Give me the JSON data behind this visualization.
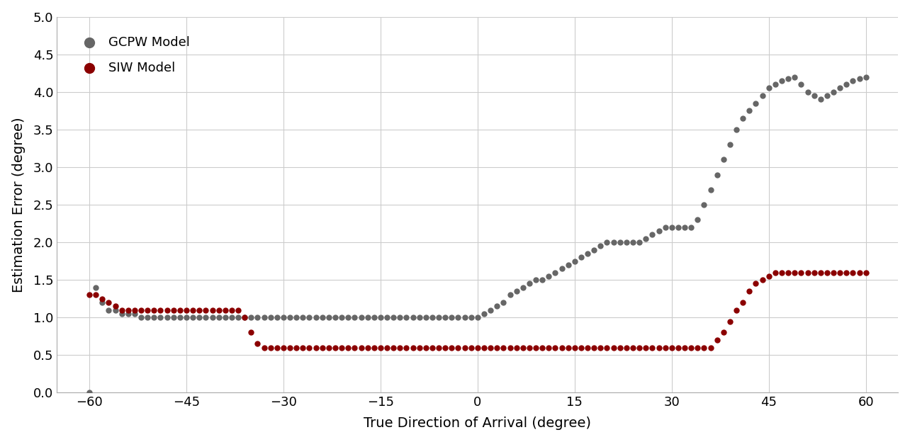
{
  "xlabel": "True Direction of Arrival (degree)",
  "ylabel": "Estimation Error (degree)",
  "xlim": [
    -65,
    65
  ],
  "ylim": [
    0.0,
    5.0
  ],
  "xticks": [
    -60,
    -45,
    -30,
    -15,
    0,
    15,
    30,
    45,
    60
  ],
  "yticks": [
    0.0,
    0.5,
    1.0,
    1.5,
    2.0,
    2.5,
    3.0,
    3.5,
    4.0,
    4.5,
    5.0
  ],
  "gcpw_color": "#666666",
  "siw_color": "#8b0000",
  "background_color": "#ffffff",
  "grid_color": "#cccccc",
  "legend_gcpw": "GCPW Model",
  "legend_siw": "SIW Model",
  "gcpw_x": [
    -60,
    -59,
    -58,
    -57,
    -56,
    -55,
    -54,
    -53,
    -52,
    -51,
    -50,
    -49,
    -48,
    -47,
    -46,
    -45,
    -44,
    -43,
    -42,
    -41,
    -40,
    -39,
    -38,
    -37,
    -36,
    -35,
    -34,
    -33,
    -32,
    -31,
    -30,
    -29,
    -28,
    -27,
    -26,
    -25,
    -24,
    -23,
    -22,
    -21,
    -20,
    -19,
    -18,
    -17,
    -16,
    -15,
    -14,
    -13,
    -12,
    -11,
    -10,
    -9,
    -8,
    -7,
    -6,
    -5,
    -4,
    -3,
    -2,
    -1,
    0,
    1,
    2,
    3,
    4,
    5,
    6,
    7,
    8,
    9,
    10,
    11,
    12,
    13,
    14,
    15,
    16,
    17,
    18,
    19,
    20,
    21,
    22,
    23,
    24,
    25,
    26,
    27,
    28,
    29,
    30,
    31,
    32,
    33,
    34,
    35,
    36,
    37,
    38,
    39,
    40,
    41,
    42,
    43,
    44,
    45,
    46,
    47,
    48,
    49,
    50,
    51,
    52,
    53,
    54,
    55,
    56,
    57,
    58,
    59,
    60
  ],
  "gcpw_y": [
    0.0,
    1.4,
    1.2,
    1.1,
    1.1,
    1.05,
    1.05,
    1.05,
    1.0,
    1.0,
    1.0,
    1.0,
    1.0,
    1.0,
    1.0,
    1.0,
    1.0,
    1.0,
    1.0,
    1.0,
    1.0,
    1.0,
    1.0,
    1.0,
    1.0,
    1.0,
    1.0,
    1.0,
    1.0,
    1.0,
    1.0,
    1.0,
    1.0,
    1.0,
    1.0,
    1.0,
    1.0,
    1.0,
    1.0,
    1.0,
    1.0,
    1.0,
    1.0,
    1.0,
    1.0,
    1.0,
    1.0,
    1.0,
    1.0,
    1.0,
    1.0,
    1.0,
    1.0,
    1.0,
    1.0,
    1.0,
    1.0,
    1.0,
    1.0,
    1.0,
    1.0,
    1.05,
    1.1,
    1.15,
    1.2,
    1.3,
    1.35,
    1.4,
    1.45,
    1.5,
    1.5,
    1.55,
    1.6,
    1.65,
    1.7,
    1.75,
    1.8,
    1.85,
    1.9,
    1.95,
    2.0,
    2.0,
    2.0,
    2.0,
    2.0,
    2.0,
    2.05,
    2.1,
    2.15,
    2.2,
    2.2,
    2.2,
    2.2,
    2.2,
    2.3,
    2.5,
    2.7,
    2.9,
    3.1,
    3.3,
    3.5,
    3.65,
    3.75,
    3.85,
    3.95,
    4.05,
    4.1,
    4.15,
    4.18,
    4.2,
    4.1,
    4.0,
    3.95,
    3.9,
    3.95,
    4.0,
    4.05,
    4.1,
    4.15,
    4.18,
    4.2
  ],
  "siw_x": [
    -60,
    -59,
    -58,
    -57,
    -56,
    -55,
    -54,
    -53,
    -52,
    -51,
    -50,
    -49,
    -48,
    -47,
    -46,
    -45,
    -44,
    -43,
    -42,
    -41,
    -40,
    -39,
    -38,
    -37,
    -36,
    -35,
    -34,
    -33,
    -32,
    -31,
    -30,
    -29,
    -28,
    -27,
    -26,
    -25,
    -24,
    -23,
    -22,
    -21,
    -20,
    -19,
    -18,
    -17,
    -16,
    -15,
    -14,
    -13,
    -12,
    -11,
    -10,
    -9,
    -8,
    -7,
    -6,
    -5,
    -4,
    -3,
    -2,
    -1,
    0,
    1,
    2,
    3,
    4,
    5,
    6,
    7,
    8,
    9,
    10,
    11,
    12,
    13,
    14,
    15,
    16,
    17,
    18,
    19,
    20,
    21,
    22,
    23,
    24,
    25,
    26,
    27,
    28,
    29,
    30,
    31,
    32,
    33,
    34,
    35,
    36,
    37,
    38,
    39,
    40,
    41,
    42,
    43,
    44,
    45,
    46,
    47,
    48,
    49,
    50,
    51,
    52,
    53,
    54,
    55,
    56,
    57,
    58,
    59,
    60
  ],
  "siw_y": [
    1.3,
    1.3,
    1.25,
    1.2,
    1.15,
    1.1,
    1.1,
    1.1,
    1.1,
    1.1,
    1.1,
    1.1,
    1.1,
    1.1,
    1.1,
    1.1,
    1.1,
    1.1,
    1.1,
    1.1,
    1.1,
    1.1,
    1.1,
    1.1,
    1.0,
    0.8,
    0.65,
    0.6,
    0.6,
    0.6,
    0.6,
    0.6,
    0.6,
    0.6,
    0.6,
    0.6,
    0.6,
    0.6,
    0.6,
    0.6,
    0.6,
    0.6,
    0.6,
    0.6,
    0.6,
    0.6,
    0.6,
    0.6,
    0.6,
    0.6,
    0.6,
    0.6,
    0.6,
    0.6,
    0.6,
    0.6,
    0.6,
    0.6,
    0.6,
    0.6,
    0.6,
    0.6,
    0.6,
    0.6,
    0.6,
    0.6,
    0.6,
    0.6,
    0.6,
    0.6,
    0.6,
    0.6,
    0.6,
    0.6,
    0.6,
    0.6,
    0.6,
    0.6,
    0.6,
    0.6,
    0.6,
    0.6,
    0.6,
    0.6,
    0.6,
    0.6,
    0.6,
    0.6,
    0.6,
    0.6,
    0.6,
    0.6,
    0.6,
    0.6,
    0.6,
    0.6,
    0.6,
    0.7,
    0.8,
    0.95,
    1.1,
    1.2,
    1.35,
    1.45,
    1.5,
    1.55,
    1.6,
    1.6,
    1.6,
    1.6,
    1.6,
    1.6,
    1.6,
    1.6,
    1.6,
    1.6,
    1.6,
    1.6,
    1.6,
    1.6,
    1.6,
    1.6,
    1.6
  ],
  "marker_size": 25,
  "font_size_label": 14,
  "font_size_tick": 13,
  "font_size_legend": 13
}
